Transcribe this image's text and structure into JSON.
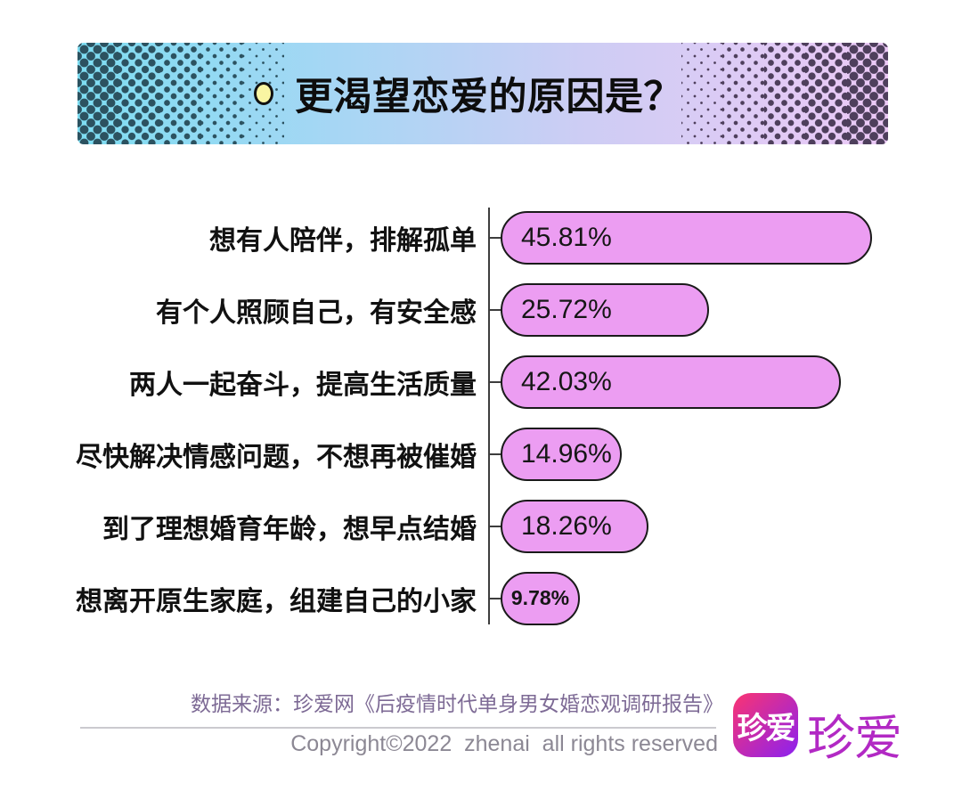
{
  "header": {
    "title": "更渴望恋爱的原因是？",
    "bullet_color": "#F9F5A2",
    "gradient": [
      "#7EDDF2",
      "#AED5F4",
      "#CDCDF4",
      "#ECC9F6"
    ],
    "dot_color_left": "#2C5260",
    "dot_color_right": "#4E3F5C"
  },
  "chart_data": {
    "type": "bar",
    "orientation": "horizontal",
    "title": "更渴望恋爱的原因是？",
    "categories": [
      "想有人陪伴，排解孤单",
      "有个人照顾自己，有安全感",
      "两人一起奋斗，提高生活质量",
      "尽快解决情感问题，不想再被催婚",
      "到了理想婚育年龄，想早点结婚",
      "想离开原生家庭，组建自己的小家"
    ],
    "values": [
      45.81,
      25.72,
      42.03,
      14.96,
      18.26,
      9.78
    ],
    "value_labels": [
      "45.81%",
      "25.72%",
      "42.03%",
      "14.96%",
      "18.26%",
      "9.78%"
    ],
    "xlim": [
      0,
      50
    ],
    "grid": false,
    "legend": false,
    "bar_color": "#EC9DF2",
    "bar_border_color": "#1A1A1A",
    "axis_color": "#3D3D3D"
  },
  "footer": {
    "source_text": "数据来源：珍爱网《后疫情时代单身男女婚恋观调研报告》",
    "source_color": "#7D6A95",
    "copyright_text": "Copyright©2022  zhenai  all rights reserved",
    "copyright_color": "#8C8894",
    "logo": {
      "badge_text": "珍爱",
      "badge_gradient": [
        "#FB3471",
        "#8B21F0"
      ],
      "wordmark_text": "珍爱",
      "wordmark_color": "#B229C4"
    }
  }
}
